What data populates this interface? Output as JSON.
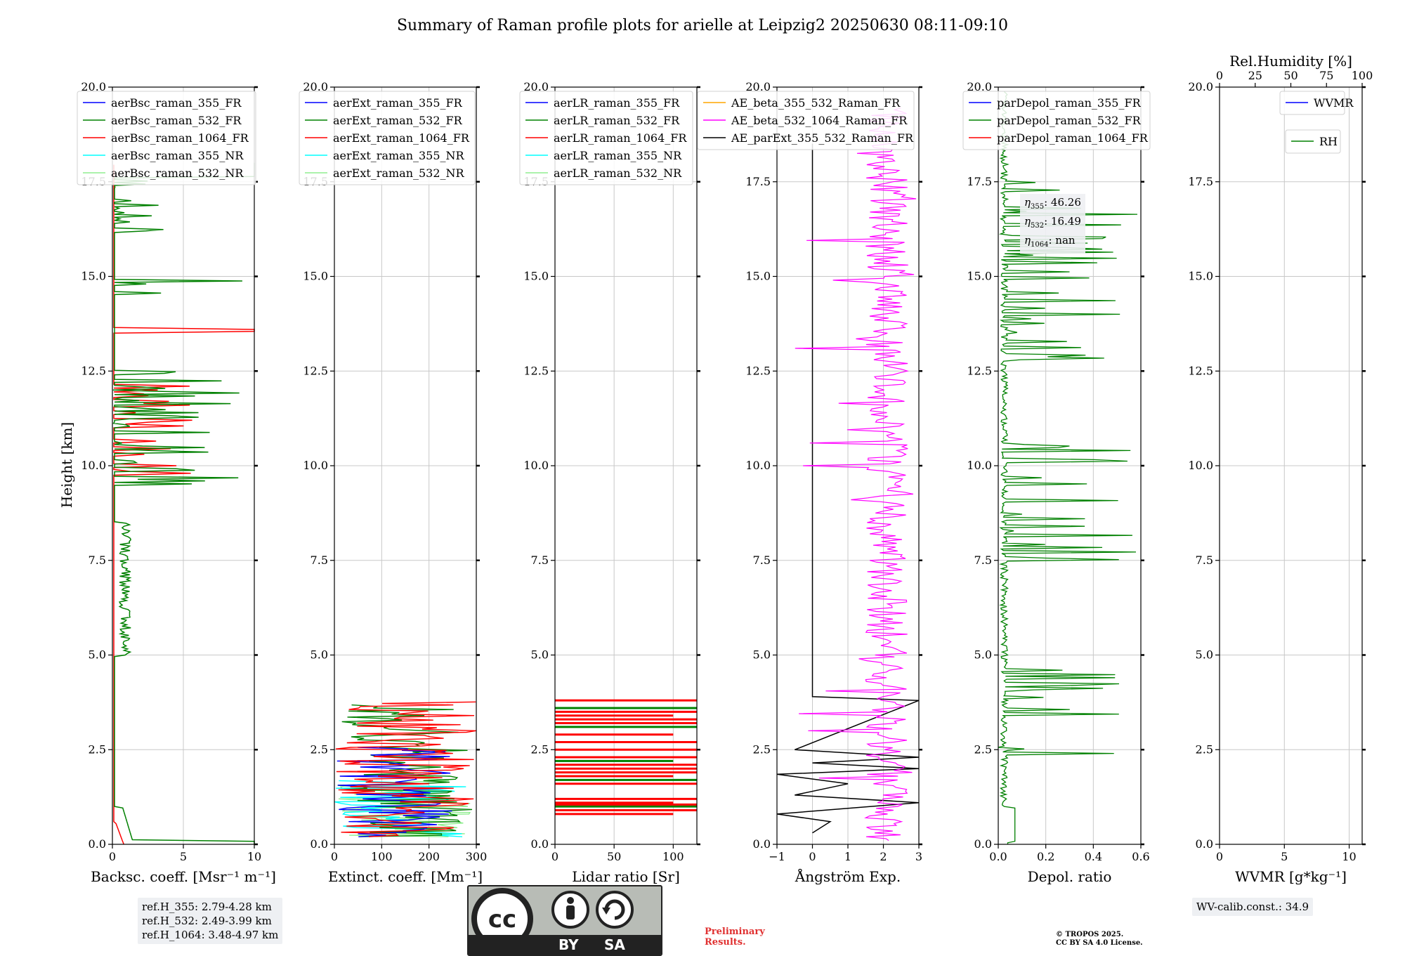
{
  "title": "Summary of Raman profile plots for arielle at Leipzig2 20250630 08:11-09:10",
  "ylabel": "Height [km]",
  "ytick_labels": [
    "0.0",
    "2.5",
    "5.0",
    "7.5",
    "10.0",
    "12.5",
    "15.0",
    "17.5",
    "20.0"
  ],
  "colors": {
    "blue": "#0000ff",
    "green": "#008000",
    "red": "#ff0000",
    "cyan": "#00ffff",
    "lightgreen": "#90ee90",
    "orange": "#ffa500",
    "magenta": "#ff00ff",
    "black": "#000000"
  },
  "chart_data": [
    {
      "type": "line",
      "name": "backscatter",
      "xlabel": "Backsc. coeff. [Msr⁻¹ m⁻¹]",
      "xlim": [
        0,
        10
      ],
      "xticks": [
        0,
        5,
        10
      ],
      "ylim": [
        0,
        20
      ],
      "legend": [
        "aerBsc_raman_355_FR",
        "aerBsc_raman_532_FR",
        "aerBsc_raman_1064_FR",
        "aerBsc_raman_355_NR",
        "aerBsc_raman_532_NR"
      ]
    },
    {
      "type": "line",
      "name": "extinction",
      "xlabel": "Extinct. coeff. [Mm⁻¹]",
      "xlim": [
        0,
        300
      ],
      "xticks": [
        0,
        100,
        200,
        300
      ],
      "ylim": [
        0,
        20
      ],
      "legend": [
        "aerExt_raman_355_FR",
        "aerExt_raman_532_FR",
        "aerExt_raman_1064_FR",
        "aerExt_raman_355_NR",
        "aerExt_raman_532_NR"
      ]
    },
    {
      "type": "line",
      "name": "lidar-ratio",
      "xlabel": "Lidar ratio [Sr]",
      "xlim": [
        0,
        120
      ],
      "xticks": [
        0,
        50,
        100
      ],
      "ylim": [
        0,
        20
      ],
      "legend": [
        "aerLR_raman_355_FR",
        "aerLR_raman_532_FR",
        "aerLR_raman_1064_FR",
        "aerLR_raman_355_NR",
        "aerLR_raman_532_NR"
      ]
    },
    {
      "type": "line",
      "name": "angstrom",
      "xlabel": "Ångström Exp.",
      "xlim": [
        -1,
        3
      ],
      "xticks": [
        -1,
        0,
        1,
        2,
        3
      ],
      "ylim": [
        0,
        20
      ],
      "legend": [
        "AE_beta_355_532_Raman_FR",
        "AE_beta_532_1064_Raman_FR",
        "AE_parExt_355_532_Raman_FR"
      ]
    },
    {
      "type": "line",
      "name": "depolarization",
      "xlabel": "Depol. ratio",
      "xlim": [
        0,
        0.6
      ],
      "xticks": [
        0.0,
        0.2,
        0.4,
        0.6
      ],
      "ylim": [
        0,
        20
      ],
      "legend": [
        "parDepol_raman_355_FR",
        "parDepol_raman_532_FR",
        "parDepol_raman_1064_FR"
      ],
      "annotations": {
        "eta355": "46.26",
        "eta532": "16.49",
        "eta1064": "nan"
      }
    },
    {
      "type": "line",
      "name": "water-vapor",
      "xlabel": "WVMR [g*kg⁻¹]",
      "xlim": [
        0,
        11
      ],
      "xticks": [
        0,
        5,
        10
      ],
      "ylim": [
        0,
        20
      ],
      "top_xlabel": "Rel.Humidity [%]",
      "top_xticks": [
        0,
        25,
        50,
        75,
        100
      ],
      "legend": [
        "WVMR",
        "RH"
      ]
    }
  ],
  "info": {
    "refh_355": "ref.H_355: 2.79-4.28 km",
    "refh_532": "ref.H_532: 2.49-3.99 km",
    "refh_1064": "ref.H_1064: 3.48-4.97 km",
    "wv_calib": "WV-calib.const.: 34.9",
    "prelim_1": "Preliminary",
    "prelim_2": "Results.",
    "copyright_1": "© TROPOS 2025.",
    "copyright_2": "CC BY SA 4.0 License.",
    "cc_by": "BY",
    "cc_sa": "SA"
  }
}
